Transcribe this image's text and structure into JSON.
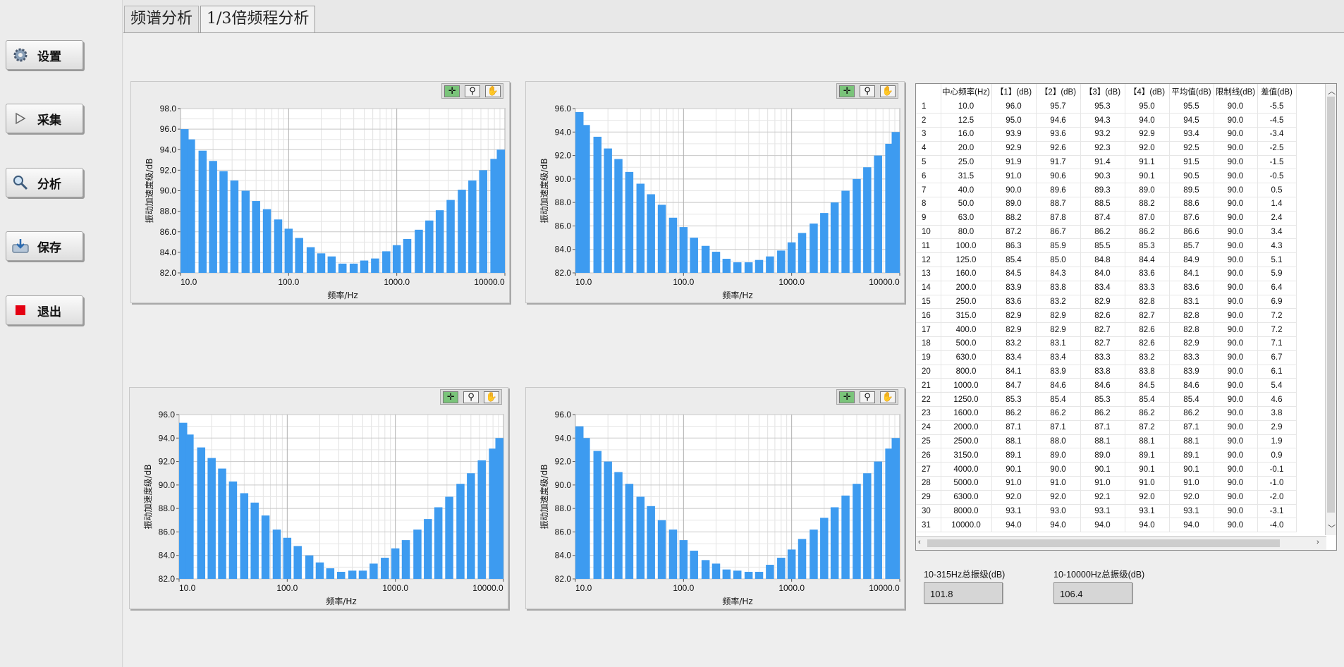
{
  "sidebar": {
    "buttons": [
      {
        "label": "设置",
        "icon": "gear-icon"
      },
      {
        "label": "采集",
        "icon": "play-icon"
      },
      {
        "label": "分析",
        "icon": "magnifier-icon"
      },
      {
        "label": "保存",
        "icon": "save-icon"
      },
      {
        "label": "退出",
        "icon": "stop-icon"
      }
    ]
  },
  "tabs": [
    {
      "label": "频谱分析"
    },
    {
      "label": "1/3倍频程分析"
    }
  ],
  "chart_tools": {
    "icons": [
      "crosshair-icon",
      "zoom-icon",
      "pan-hand-icon"
    ]
  },
  "table": {
    "headers": [
      "",
      "中心频率(Hz)",
      "【1】(dB)",
      "【2】(dB)",
      "【3】(dB)",
      "【4】(dB)",
      "平均值(dB)",
      "限制线(dB)",
      "差值(dB)"
    ],
    "rows": [
      [
        "1",
        "10.0",
        "96.0",
        "95.7",
        "95.3",
        "95.0",
        "95.5",
        "90.0",
        "-5.5"
      ],
      [
        "2",
        "12.5",
        "95.0",
        "94.6",
        "94.3",
        "94.0",
        "94.5",
        "90.0",
        "-4.5"
      ],
      [
        "3",
        "16.0",
        "93.9",
        "93.6",
        "93.2",
        "92.9",
        "93.4",
        "90.0",
        "-3.4"
      ],
      [
        "4",
        "20.0",
        "92.9",
        "92.6",
        "92.3",
        "92.0",
        "92.5",
        "90.0",
        "-2.5"
      ],
      [
        "5",
        "25.0",
        "91.9",
        "91.7",
        "91.4",
        "91.1",
        "91.5",
        "90.0",
        "-1.5"
      ],
      [
        "6",
        "31.5",
        "91.0",
        "90.6",
        "90.3",
        "90.1",
        "90.5",
        "90.0",
        "-0.5"
      ],
      [
        "7",
        "40.0",
        "90.0",
        "89.6",
        "89.3",
        "89.0",
        "89.5",
        "90.0",
        "0.5"
      ],
      [
        "8",
        "50.0",
        "89.0",
        "88.7",
        "88.5",
        "88.2",
        "88.6",
        "90.0",
        "1.4"
      ],
      [
        "9",
        "63.0",
        "88.2",
        "87.8",
        "87.4",
        "87.0",
        "87.6",
        "90.0",
        "2.4"
      ],
      [
        "10",
        "80.0",
        "87.2",
        "86.7",
        "86.2",
        "86.2",
        "86.6",
        "90.0",
        "3.4"
      ],
      [
        "11",
        "100.0",
        "86.3",
        "85.9",
        "85.5",
        "85.3",
        "85.7",
        "90.0",
        "4.3"
      ],
      [
        "12",
        "125.0",
        "85.4",
        "85.0",
        "84.8",
        "84.4",
        "84.9",
        "90.0",
        "5.1"
      ],
      [
        "13",
        "160.0",
        "84.5",
        "84.3",
        "84.0",
        "83.6",
        "84.1",
        "90.0",
        "5.9"
      ],
      [
        "14",
        "200.0",
        "83.9",
        "83.8",
        "83.4",
        "83.3",
        "83.6",
        "90.0",
        "6.4"
      ],
      [
        "15",
        "250.0",
        "83.6",
        "83.2",
        "82.9",
        "82.8",
        "83.1",
        "90.0",
        "6.9"
      ],
      [
        "16",
        "315.0",
        "82.9",
        "82.9",
        "82.6",
        "82.7",
        "82.8",
        "90.0",
        "7.2"
      ],
      [
        "17",
        "400.0",
        "82.9",
        "82.9",
        "82.7",
        "82.6",
        "82.8",
        "90.0",
        "7.2"
      ],
      [
        "18",
        "500.0",
        "83.2",
        "83.1",
        "82.7",
        "82.6",
        "82.9",
        "90.0",
        "7.1"
      ],
      [
        "19",
        "630.0",
        "83.4",
        "83.4",
        "83.3",
        "83.2",
        "83.3",
        "90.0",
        "6.7"
      ],
      [
        "20",
        "800.0",
        "84.1",
        "83.9",
        "83.8",
        "83.8",
        "83.9",
        "90.0",
        "6.1"
      ],
      [
        "21",
        "1000.0",
        "84.7",
        "84.6",
        "84.6",
        "84.5",
        "84.6",
        "90.0",
        "5.4"
      ],
      [
        "22",
        "1250.0",
        "85.3",
        "85.4",
        "85.3",
        "85.4",
        "85.4",
        "90.0",
        "4.6"
      ],
      [
        "23",
        "1600.0",
        "86.2",
        "86.2",
        "86.2",
        "86.2",
        "86.2",
        "90.0",
        "3.8"
      ],
      [
        "24",
        "2000.0",
        "87.1",
        "87.1",
        "87.1",
        "87.2",
        "87.1",
        "90.0",
        "2.9"
      ],
      [
        "25",
        "2500.0",
        "88.1",
        "88.0",
        "88.1",
        "88.1",
        "88.1",
        "90.0",
        "1.9"
      ],
      [
        "26",
        "3150.0",
        "89.1",
        "89.0",
        "89.0",
        "89.1",
        "89.1",
        "90.0",
        "0.9"
      ],
      [
        "27",
        "4000.0",
        "90.1",
        "90.0",
        "90.1",
        "90.1",
        "90.1",
        "90.0",
        "-0.1"
      ],
      [
        "28",
        "5000.0",
        "91.0",
        "91.0",
        "91.0",
        "91.0",
        "91.0",
        "90.0",
        "-1.0"
      ],
      [
        "29",
        "6300.0",
        "92.0",
        "92.0",
        "92.1",
        "92.0",
        "92.0",
        "90.0",
        "-2.0"
      ],
      [
        "30",
        "8000.0",
        "93.1",
        "93.0",
        "93.1",
        "93.1",
        "93.1",
        "90.0",
        "-3.1"
      ],
      [
        "31",
        "10000.0",
        "94.0",
        "94.0",
        "94.0",
        "94.0",
        "94.0",
        "90.0",
        "-4.0"
      ]
    ]
  },
  "totals": {
    "low": {
      "label": "10-315Hz总振级(dB)",
      "value": "101.8"
    },
    "full": {
      "label": "10-10000Hz总振级(dB)",
      "value": "106.4"
    }
  },
  "colors": {
    "bar": "#3d9bf0",
    "grid": "#c8c8c8",
    "plot_bg": "#ffffff"
  },
  "chart_data": [
    {
      "type": "bar",
      "xlabel": "频率/Hz",
      "ylabel": "振动加速度级/dB",
      "x_scale": "log",
      "xlim": [
        10,
        10000
      ],
      "ylim": [
        82,
        98
      ],
      "yticks": [
        "82.0",
        "84.0",
        "86.0",
        "88.0",
        "90.0",
        "92.0",
        "94.0",
        "96.0",
        "98.0"
      ],
      "xticks": [
        "10.0",
        "100.0",
        "1000.0",
        "10000.0"
      ],
      "categories": [
        10,
        12.5,
        16,
        20,
        25,
        31.5,
        40,
        50,
        63,
        80,
        100,
        125,
        160,
        200,
        250,
        315,
        400,
        500,
        630,
        800,
        1000,
        1250,
        1600,
        2000,
        2500,
        3150,
        4000,
        5000,
        6300,
        8000,
        10000
      ],
      "values": [
        96.0,
        95.0,
        93.9,
        92.9,
        91.9,
        91.0,
        90.0,
        89.0,
        88.2,
        87.2,
        86.3,
        85.4,
        84.5,
        83.9,
        83.6,
        82.9,
        82.9,
        83.2,
        83.4,
        84.1,
        84.7,
        85.3,
        86.2,
        87.1,
        88.1,
        89.1,
        90.1,
        91.0,
        92.0,
        93.1,
        94.0
      ]
    },
    {
      "type": "bar",
      "xlabel": "频率/Hz",
      "ylabel": "振动加速度级/dB",
      "x_scale": "log",
      "xlim": [
        10,
        10000
      ],
      "ylim": [
        82,
        96
      ],
      "yticks": [
        "82.0",
        "84.0",
        "86.0",
        "88.0",
        "90.0",
        "92.0",
        "94.0",
        "96.0"
      ],
      "xticks": [
        "10.0",
        "100.0",
        "1000.0",
        "10000.0"
      ],
      "categories": [
        10,
        12.5,
        16,
        20,
        25,
        31.5,
        40,
        50,
        63,
        80,
        100,
        125,
        160,
        200,
        250,
        315,
        400,
        500,
        630,
        800,
        1000,
        1250,
        1600,
        2000,
        2500,
        3150,
        4000,
        5000,
        6300,
        8000,
        10000
      ],
      "values": [
        95.7,
        94.6,
        93.6,
        92.6,
        91.7,
        90.6,
        89.6,
        88.7,
        87.8,
        86.7,
        85.9,
        85.0,
        84.3,
        83.8,
        83.2,
        82.9,
        82.9,
        83.1,
        83.4,
        83.9,
        84.6,
        85.4,
        86.2,
        87.1,
        88.0,
        89.0,
        90.0,
        91.0,
        92.0,
        93.0,
        94.0
      ]
    },
    {
      "type": "bar",
      "xlabel": "频率/Hz",
      "ylabel": "振动加速度级/dB",
      "x_scale": "log",
      "xlim": [
        10,
        10000
      ],
      "ylim": [
        82,
        96
      ],
      "yticks": [
        "82.0",
        "84.0",
        "86.0",
        "88.0",
        "90.0",
        "92.0",
        "94.0",
        "96.0"
      ],
      "xticks": [
        "10.0",
        "100.0",
        "1000.0",
        "10000.0"
      ],
      "categories": [
        10,
        12.5,
        16,
        20,
        25,
        31.5,
        40,
        50,
        63,
        80,
        100,
        125,
        160,
        200,
        250,
        315,
        400,
        500,
        630,
        800,
        1000,
        1250,
        1600,
        2000,
        2500,
        3150,
        4000,
        5000,
        6300,
        8000,
        10000
      ],
      "values": [
        95.3,
        94.3,
        93.2,
        92.3,
        91.4,
        90.3,
        89.3,
        88.5,
        87.4,
        86.2,
        85.5,
        84.8,
        84.0,
        83.4,
        82.9,
        82.6,
        82.7,
        82.7,
        83.3,
        83.8,
        84.6,
        85.3,
        86.2,
        87.1,
        88.1,
        89.0,
        90.1,
        91.0,
        92.1,
        93.1,
        94.0
      ]
    },
    {
      "type": "bar",
      "xlabel": "频率/Hz",
      "ylabel": "振动加速度级/dB",
      "x_scale": "log",
      "xlim": [
        10,
        10000
      ],
      "ylim": [
        82,
        96
      ],
      "yticks": [
        "82.0",
        "84.0",
        "86.0",
        "88.0",
        "90.0",
        "92.0",
        "94.0",
        "96.0"
      ],
      "xticks": [
        "10.0",
        "100.0",
        "1000.0",
        "10000.0"
      ],
      "categories": [
        10,
        12.5,
        16,
        20,
        25,
        31.5,
        40,
        50,
        63,
        80,
        100,
        125,
        160,
        200,
        250,
        315,
        400,
        500,
        630,
        800,
        1000,
        1250,
        1600,
        2000,
        2500,
        3150,
        4000,
        5000,
        6300,
        8000,
        10000
      ],
      "values": [
        95.0,
        94.0,
        92.9,
        92.0,
        91.1,
        90.1,
        89.0,
        88.2,
        87.0,
        86.2,
        85.3,
        84.4,
        83.6,
        83.3,
        82.8,
        82.7,
        82.6,
        82.6,
        83.2,
        83.8,
        84.5,
        85.4,
        86.2,
        87.2,
        88.1,
        89.1,
        90.1,
        91.0,
        92.0,
        93.1,
        94.0
      ]
    }
  ]
}
